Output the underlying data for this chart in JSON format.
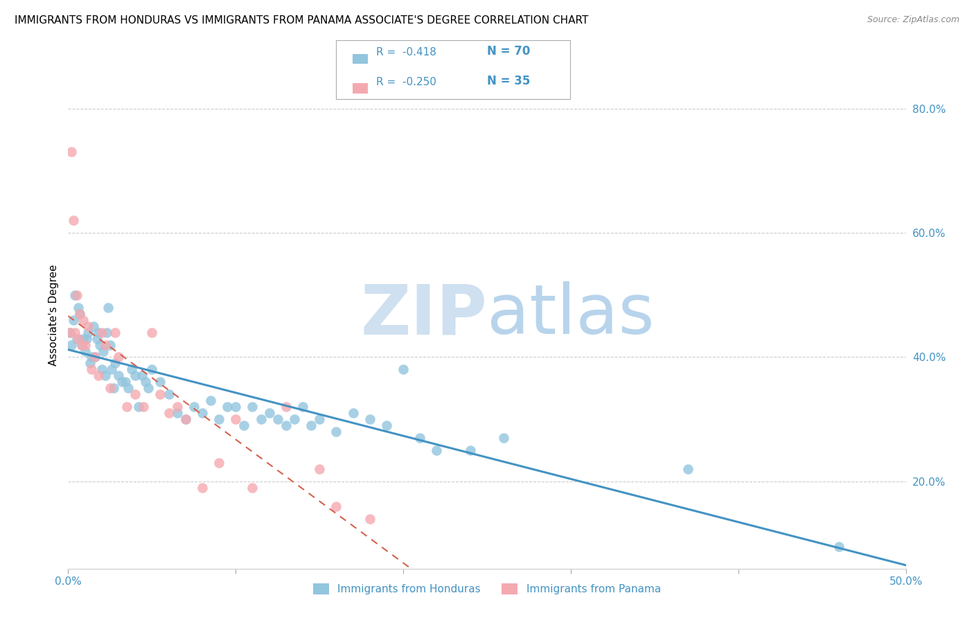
{
  "title": "IMMIGRANTS FROM HONDURAS VS IMMIGRANTS FROM PANAMA ASSOCIATE'S DEGREE CORRELATION CHART",
  "source_text": "Source: ZipAtlas.com",
  "ylabel": "Associate's Degree",
  "xlim": [
    0.0,
    0.5
  ],
  "ylim": [
    0.06,
    0.875
  ],
  "yticks_right": [
    0.2,
    0.4,
    0.6,
    0.8
  ],
  "ytick_labels_right": [
    "20.0%",
    "40.0%",
    "60.0%",
    "80.0%"
  ],
  "xtick_positions": [
    0.0,
    0.1,
    0.2,
    0.3,
    0.4,
    0.5
  ],
  "xtick_labels": [
    "0.0%",
    "",
    "",
    "",
    "",
    "50.0%"
  ],
  "title_fontsize": 11,
  "axis_label_fontsize": 11,
  "tick_fontsize": 11,
  "legend_R1": "-0.418",
  "legend_N1": "70",
  "legend_R2": "-0.250",
  "legend_N2": "35",
  "legend_label1": "Immigrants from Honduras",
  "legend_label2": "Immigrants from Panama",
  "color_blue": "#92c5de",
  "color_pink": "#f4a9b0",
  "color_blue_line": "#4393c3",
  "color_pink_line": "#d6604d",
  "watermark_color": "#cfe0f0",
  "background_color": "#ffffff",
  "grid_color": "#cccccc",
  "honduras_x": [
    0.001,
    0.002,
    0.003,
    0.004,
    0.005,
    0.006,
    0.007,
    0.008,
    0.009,
    0.01,
    0.011,
    0.012,
    0.013,
    0.014,
    0.015,
    0.016,
    0.017,
    0.018,
    0.019,
    0.02,
    0.021,
    0.022,
    0.023,
    0.024,
    0.025,
    0.026,
    0.027,
    0.028,
    0.03,
    0.032,
    0.034,
    0.036,
    0.038,
    0.04,
    0.042,
    0.044,
    0.046,
    0.048,
    0.05,
    0.055,
    0.06,
    0.065,
    0.07,
    0.075,
    0.08,
    0.085,
    0.09,
    0.095,
    0.1,
    0.105,
    0.11,
    0.115,
    0.12,
    0.125,
    0.13,
    0.135,
    0.14,
    0.145,
    0.15,
    0.16,
    0.17,
    0.18,
    0.19,
    0.2,
    0.21,
    0.22,
    0.24,
    0.26,
    0.37,
    0.46
  ],
  "honduras_y": [
    0.44,
    0.42,
    0.46,
    0.5,
    0.43,
    0.48,
    0.47,
    0.42,
    0.43,
    0.41,
    0.43,
    0.44,
    0.39,
    0.4,
    0.45,
    0.4,
    0.43,
    0.44,
    0.42,
    0.38,
    0.41,
    0.37,
    0.44,
    0.48,
    0.42,
    0.38,
    0.35,
    0.39,
    0.37,
    0.36,
    0.36,
    0.35,
    0.38,
    0.37,
    0.32,
    0.37,
    0.36,
    0.35,
    0.38,
    0.36,
    0.34,
    0.31,
    0.3,
    0.32,
    0.31,
    0.33,
    0.3,
    0.32,
    0.32,
    0.29,
    0.32,
    0.3,
    0.31,
    0.3,
    0.29,
    0.3,
    0.32,
    0.29,
    0.3,
    0.28,
    0.31,
    0.3,
    0.29,
    0.38,
    0.27,
    0.25,
    0.25,
    0.27,
    0.22,
    0.095
  ],
  "panama_x": [
    0.001,
    0.002,
    0.003,
    0.004,
    0.005,
    0.006,
    0.007,
    0.008,
    0.009,
    0.01,
    0.012,
    0.014,
    0.016,
    0.018,
    0.02,
    0.022,
    0.025,
    0.028,
    0.03,
    0.035,
    0.04,
    0.045,
    0.05,
    0.055,
    0.06,
    0.065,
    0.07,
    0.08,
    0.09,
    0.1,
    0.11,
    0.13,
    0.15,
    0.16,
    0.18
  ],
  "panama_y": [
    0.44,
    0.73,
    0.62,
    0.44,
    0.5,
    0.43,
    0.47,
    0.42,
    0.46,
    0.42,
    0.45,
    0.38,
    0.4,
    0.37,
    0.44,
    0.42,
    0.35,
    0.44,
    0.4,
    0.32,
    0.34,
    0.32,
    0.44,
    0.34,
    0.31,
    0.32,
    0.3,
    0.19,
    0.23,
    0.3,
    0.19,
    0.32,
    0.22,
    0.16,
    0.14
  ]
}
